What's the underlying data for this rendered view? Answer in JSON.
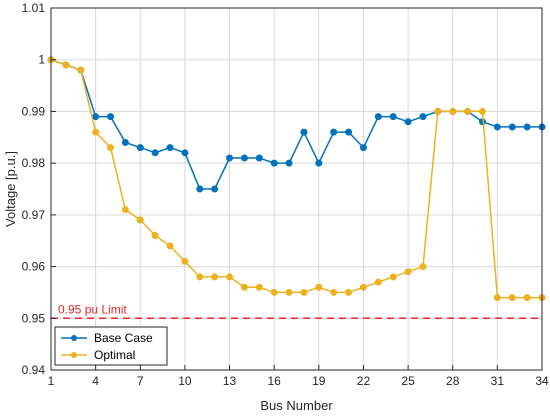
{
  "chart_data": {
    "type": "line",
    "xlabel": "Bus Number",
    "ylabel": "Voltage [p.u.]",
    "xlim": [
      1,
      34
    ],
    "ylim": [
      0.94,
      1.01
    ],
    "x_ticks": [
      1,
      4,
      7,
      10,
      13,
      16,
      19,
      22,
      25,
      28,
      31,
      34
    ],
    "y_ticks": [
      0.94,
      0.95,
      0.96,
      0.97,
      0.98,
      0.99,
      1,
      1.01
    ],
    "y_tick_labels": [
      "0.94",
      "0.95",
      "0.96",
      "0.97",
      "0.98",
      "0.99",
      "1",
      "1.01"
    ],
    "grid": true,
    "legend_position": "bottom-left",
    "x": [
      1,
      2,
      3,
      4,
      5,
      6,
      7,
      8,
      9,
      10,
      11,
      12,
      13,
      14,
      15,
      16,
      17,
      18,
      19,
      20,
      21,
      22,
      23,
      24,
      25,
      26,
      27,
      28,
      29,
      30,
      31,
      32,
      33,
      34
    ],
    "series": [
      {
        "name": "Base Case",
        "color": "#0072BD",
        "values": [
          1.0,
          0.999,
          0.998,
          0.989,
          0.989,
          0.984,
          0.983,
          0.982,
          0.983,
          0.982,
          0.975,
          0.975,
          0.981,
          0.981,
          0.981,
          0.98,
          0.98,
          0.986,
          0.98,
          0.986,
          0.986,
          0.983,
          0.989,
          0.989,
          0.988,
          0.989,
          0.99,
          0.99,
          0.99,
          0.988,
          0.987,
          0.987,
          0.987,
          0.987
        ]
      },
      {
        "name": "Optimal",
        "color": "#EDB120",
        "values": [
          1.0,
          0.999,
          0.998,
          0.986,
          0.983,
          0.971,
          0.969,
          0.966,
          0.964,
          0.961,
          0.958,
          0.958,
          0.958,
          0.956,
          0.956,
          0.955,
          0.955,
          0.955,
          0.956,
          0.955,
          0.955,
          0.956,
          0.957,
          0.958,
          0.959,
          0.96,
          0.99,
          0.99,
          0.99,
          0.99,
          0.954,
          0.954,
          0.954,
          0.954
        ]
      }
    ],
    "reference_line": {
      "value": 0.95,
      "label": "0.95 pu Limit",
      "color": "#E8262A"
    }
  }
}
